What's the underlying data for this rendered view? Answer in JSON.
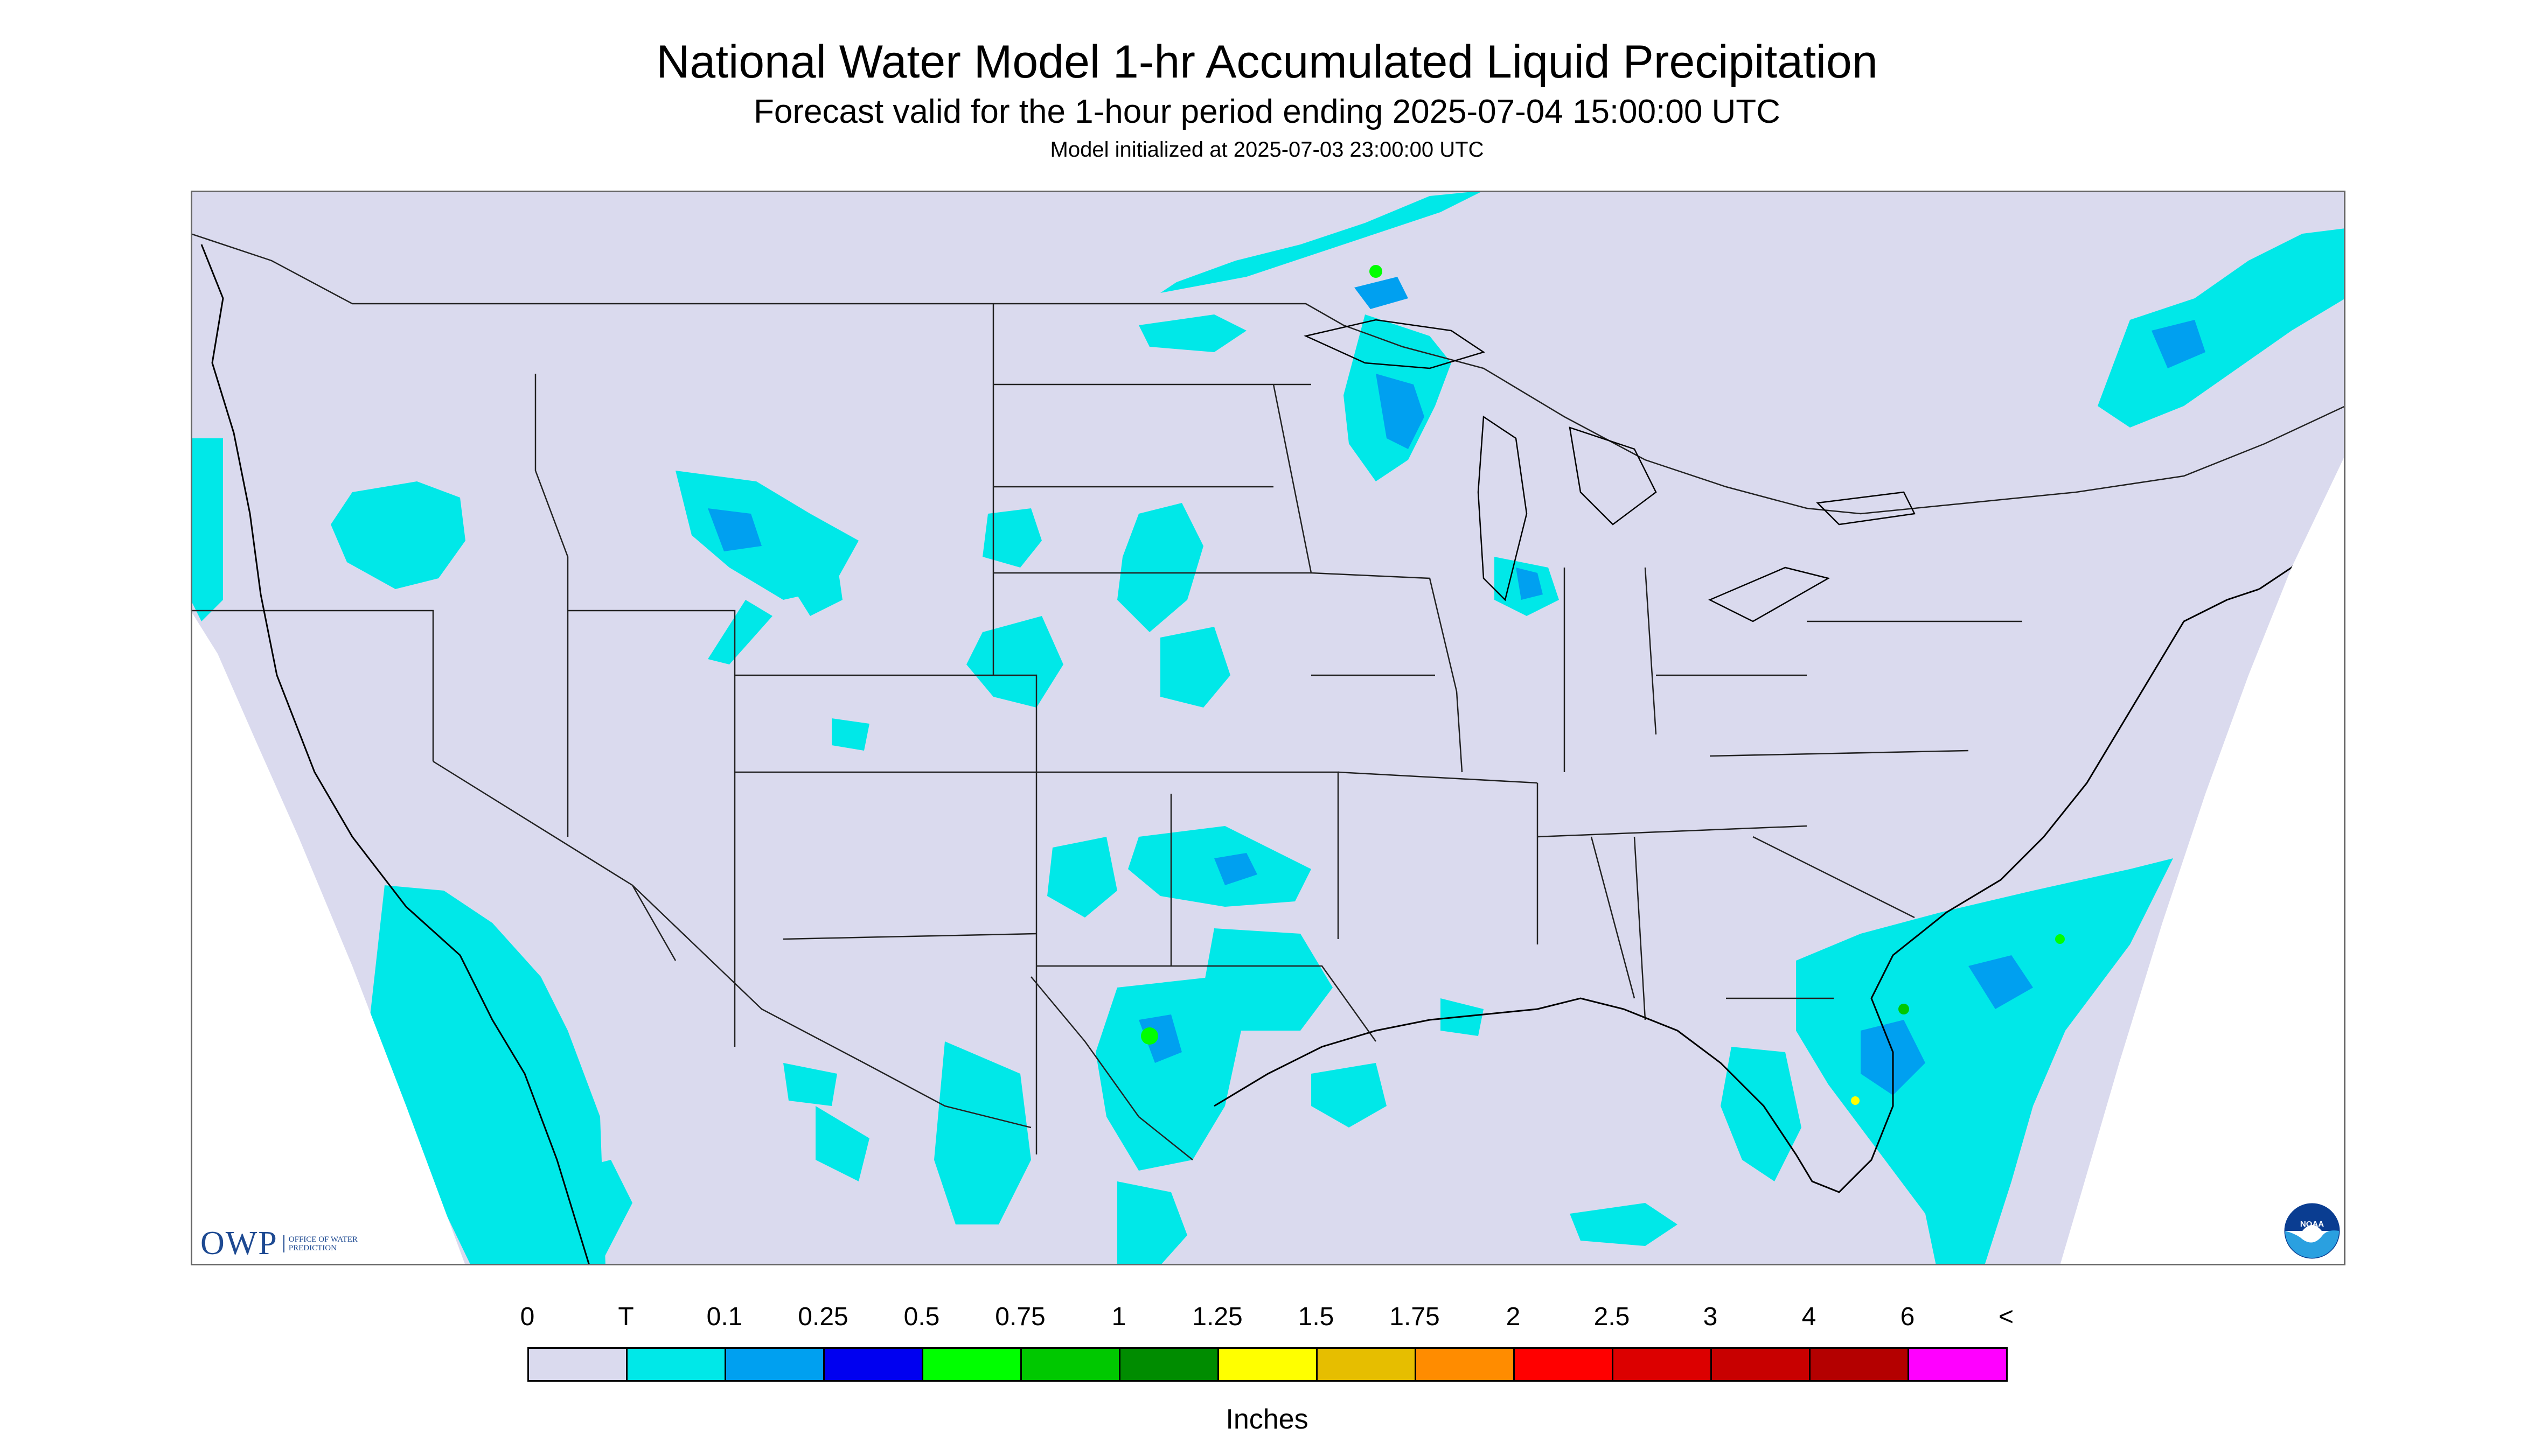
{
  "header": {
    "title": "National Water Model 1-hr Accumulated Liquid Precipitation",
    "subtitle": "Forecast valid for the 1-hour period ending 2025-07-04 15:00:00 UTC",
    "init": "Model initialized at 2025-07-03 23:00:00 UTC"
  },
  "map": {
    "region": "Contiguous United States",
    "background_color": "#dadaee",
    "outside_domain_color": "#ffffff",
    "border_color": "#222222"
  },
  "legend": {
    "labels": [
      "0",
      "T",
      "0.1",
      "0.25",
      "0.5",
      "0.75",
      "1",
      "1.25",
      "1.5",
      "1.75",
      "2",
      "2.5",
      "3",
      "4",
      "6",
      "<"
    ],
    "colors": [
      "#dadaee",
      "#00e8e8",
      "#00a0f0",
      "#0000f0",
      "#00ff00",
      "#00c800",
      "#008c00",
      "#ffff00",
      "#e6be00",
      "#ff8c00",
      "#ff0000",
      "#dc0000",
      "#c80000",
      "#b40000",
      "#ff00ff",
      "#9955cc"
    ],
    "units": "Inches"
  },
  "logos": {
    "owp": {
      "mark": "OWP",
      "text": "OFFICE OF WATER PREDICTION"
    },
    "noaa": {
      "text": "NOAA"
    }
  }
}
